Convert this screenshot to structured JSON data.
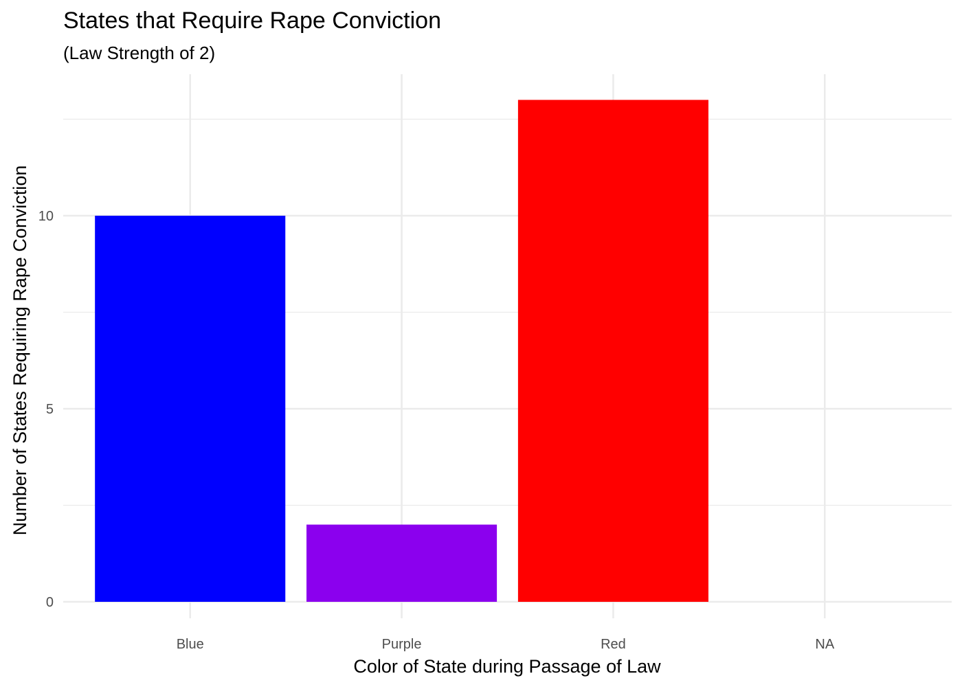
{
  "chart_data": {
    "type": "bar",
    "title": "States that Require Rape Conviction",
    "subtitle": "(Law Strength of 2)",
    "xlabel": "Color of State during Passage of Law",
    "ylabel": "Number of States Requiring Rape Conviction",
    "categories": [
      "Blue",
      "Purple",
      "Red",
      "NA"
    ],
    "values": [
      10,
      2,
      13,
      0
    ],
    "colors": [
      "#0000FF",
      "#8B00EE",
      "#FF0000",
      "#BEBEBE"
    ],
    "ylim": [
      0,
      13.65
    ],
    "yticks": [
      0,
      5,
      10
    ],
    "yticks_minor": [
      2.5,
      7.5,
      12.5
    ],
    "ytick_labels": [
      "0",
      "5",
      "10"
    ],
    "grid": true,
    "gridline_color": "#EBEBEB",
    "legend": "none"
  }
}
